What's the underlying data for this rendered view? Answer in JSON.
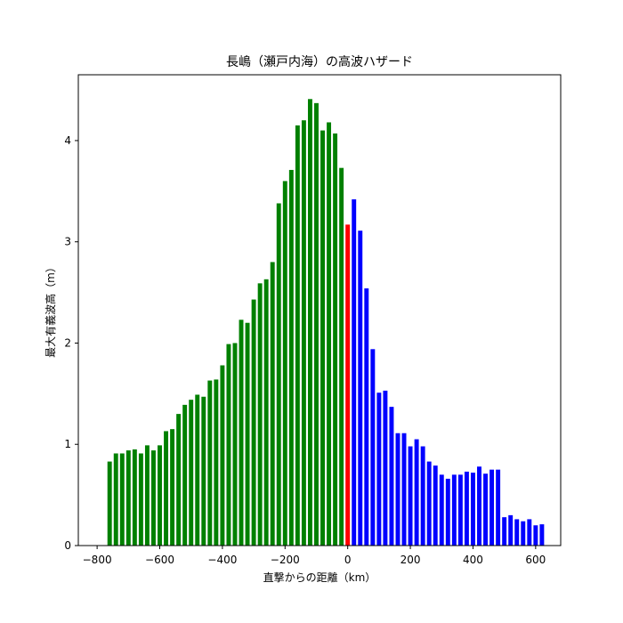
{
  "chart_data": {
    "type": "bar",
    "title": "長嶋（瀬戸内海）の高波ハザード",
    "xlabel": "直撃からの距離（km）",
    "ylabel": "最大有義波高（m）",
    "xlim": [
      -860,
      680
    ],
    "ylim": [
      0,
      4.65
    ],
    "xticks": [
      -800,
      -600,
      -400,
      -200,
      0,
      200,
      400,
      600
    ],
    "yticks": [
      0,
      1,
      2,
      3,
      4
    ],
    "xtick_labels": [
      "−800",
      "−600",
      "−400",
      "−200",
      "0",
      "200",
      "400",
      "600"
    ],
    "ytick_labels": [
      "0",
      "1",
      "2",
      "3",
      "4"
    ],
    "bar_width_km": 14,
    "grid": false,
    "legend": "none",
    "series": [
      {
        "color": "#008000",
        "x": [
          -760,
          -740,
          -720,
          -700,
          -680,
          -660,
          -640,
          -620,
          -600,
          -580,
          -560,
          -540,
          -520,
          -500,
          -480,
          -460,
          -440,
          -420,
          -400,
          -380,
          -360,
          -340,
          -320,
          -300,
          -280,
          -260,
          -240,
          -220,
          -200,
          -180,
          -160,
          -140,
          -120,
          -100,
          -80,
          -60,
          -40,
          -20
        ],
        "values": [
          0.83,
          0.91,
          0.91,
          0.94,
          0.95,
          0.91,
          0.99,
          0.94,
          0.99,
          1.13,
          1.15,
          1.3,
          1.39,
          1.44,
          1.49,
          1.47,
          1.63,
          1.64,
          1.78,
          1.99,
          2.0,
          2.23,
          2.2,
          2.43,
          2.59,
          2.63,
          2.8,
          3.38,
          3.6,
          3.71,
          4.15,
          4.2,
          4.41,
          4.37,
          4.1,
          4.18,
          4.07,
          3.73
        ]
      },
      {
        "color": "#ff0000",
        "x": [
          0
        ],
        "values": [
          3.17
        ]
      },
      {
        "color": "#0000ff",
        "x": [
          20,
          40,
          60,
          80,
          100,
          120,
          140,
          160,
          180,
          200,
          220,
          240,
          260,
          280,
          300,
          320,
          340,
          360,
          380,
          400,
          420,
          440,
          460,
          480,
          500,
          520,
          540,
          560,
          580,
          600,
          620
        ],
        "values": [
          3.42,
          3.11,
          2.54,
          1.94,
          1.51,
          1.53,
          1.37,
          1.11,
          1.11,
          0.98,
          1.05,
          0.98,
          0.83,
          0.79,
          0.7,
          0.66,
          0.7,
          0.7,
          0.73,
          0.72,
          0.78,
          0.71,
          0.75,
          0.75,
          0.28,
          0.3,
          0.26,
          0.24,
          0.26,
          0.2,
          0.21
        ]
      }
    ]
  }
}
